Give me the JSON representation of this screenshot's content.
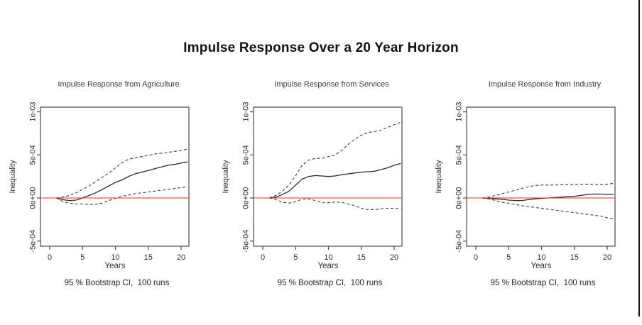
{
  "page": {
    "title": "Impulse Response Over a 20 Year Horizon"
  },
  "colors": {
    "background": "#ffffff",
    "text": "#1a1a1a",
    "axis": "#4a4a4a",
    "irf_line": "#2b2b2b",
    "ci_line": "#3d3d3d",
    "zero_line": "#e03131",
    "window_edge": "#151515"
  },
  "chart_data": [
    {
      "type": "line",
      "title": "Impulse Response from Agriculture",
      "xlabel": "Years",
      "ylabel": "Inequality",
      "caption": "95 % Bootstrap CI,  100 runs",
      "grid": false,
      "legend": "none",
      "xlim": [
        -1.1,
        21.8
      ],
      "ylim": [
        -0.00062,
        0.00108
      ],
      "x_ticks": [
        0,
        5,
        10,
        15,
        20
      ],
      "y_ticks": [
        {
          "label": "-5e-04",
          "value": -0.0005
        },
        {
          "label": "0e+00",
          "value": 0
        },
        {
          "label": "5e-04",
          "value": 0.0005
        },
        {
          "label": "1e-03",
          "value": 0.001
        }
      ],
      "x": [
        1,
        2,
        3,
        4,
        5,
        6,
        7,
        8,
        9,
        10,
        11,
        12,
        13,
        14,
        15,
        16,
        17,
        18,
        19,
        20,
        21
      ],
      "series": [
        {
          "name": "impulse-response",
          "style": "solid",
          "values": [
            0,
            -2e-05,
            -3e-05,
            -2.5e-05,
            0,
            3e-05,
            6e-05,
            0.0001,
            0.00014,
            0.00018,
            0.00021,
            0.00025,
            0.00028,
            0.0003,
            0.00032,
            0.00034,
            0.00036,
            0.00038,
            0.00039,
            0.000405,
            0.00042
          ]
        },
        {
          "name": "upper-ci",
          "style": "dashed",
          "values": [
            0,
            1e-05,
            3e-05,
            6e-05,
            0.0001,
            0.00014,
            0.00019,
            0.00024,
            0.00029,
            0.00035,
            0.00041,
            0.00045,
            0.000465,
            0.00048,
            0.000495,
            0.00051,
            0.00052,
            0.00053,
            0.00054,
            0.00055,
            0.00057
          ]
        },
        {
          "name": "lower-ci",
          "style": "dashed",
          "values": [
            0,
            -4e-05,
            -6e-05,
            -7e-05,
            -7e-05,
            -7.5e-05,
            -7.5e-05,
            -6e-05,
            -3e-05,
            -5e-06,
            2e-05,
            3.5e-05,
            5e-05,
            6e-05,
            7e-05,
            8e-05,
            9e-05,
            0.0001,
            0.00011,
            0.00012,
            0.00013
          ]
        }
      ],
      "reference_line": {
        "y": 0,
        "color": "red"
      }
    },
    {
      "type": "line",
      "title": "Impulse Response from Services",
      "xlabel": "Years",
      "ylabel": "Inequality",
      "caption": "95 % Bootstrap CI,  100 runs",
      "grid": false,
      "legend": "none",
      "xlim": [
        -1.1,
        21.8
      ],
      "ylim": [
        -0.00062,
        0.00108
      ],
      "x_ticks": [
        0,
        5,
        10,
        15,
        20
      ],
      "y_ticks": [
        {
          "label": "-5e-04",
          "value": -0.0005
        },
        {
          "label": "0e+00",
          "value": 0
        },
        {
          "label": "5e-04",
          "value": 0.0005
        },
        {
          "label": "1e-03",
          "value": 0.001
        }
      ],
      "x": [
        1,
        2,
        3,
        4,
        5,
        6,
        7,
        8,
        9,
        10,
        11,
        12,
        13,
        14,
        15,
        16,
        17,
        18,
        19,
        20,
        21
      ],
      "series": [
        {
          "name": "impulse-response",
          "style": "solid",
          "values": [
            0,
            1e-05,
            4e-05,
            8e-05,
            0.00015,
            0.00022,
            0.00025,
            0.00026,
            0.000255,
            0.00025,
            0.000255,
            0.00027,
            0.00028,
            0.00029,
            0.0003,
            0.000305,
            0.00031,
            0.00033,
            0.00035,
            0.00038,
            0.0004
          ]
        },
        {
          "name": "upper-ci",
          "style": "dashed",
          "values": [
            0,
            3e-05,
            8e-05,
            0.00015,
            0.00026,
            0.00038,
            0.00044,
            0.00046,
            0.00046,
            0.00048,
            0.0005,
            0.00055,
            0.00062,
            0.00068,
            0.00073,
            0.00076,
            0.00077,
            0.00079,
            0.00082,
            0.00085,
            0.00088
          ]
        },
        {
          "name": "lower-ci",
          "style": "dashed",
          "values": [
            0,
            -2e-05,
            -5e-05,
            -6e-05,
            -4e-05,
            -1.5e-05,
            -1e-05,
            -3e-05,
            -5e-05,
            -5.5e-05,
            -4.5e-05,
            -5e-05,
            -7e-05,
            -9e-05,
            -0.00012,
            -0.000135,
            -0.000135,
            -0.000125,
            -0.00012,
            -0.00012,
            -0.000125
          ]
        }
      ],
      "reference_line": {
        "y": 0,
        "color": "red"
      }
    },
    {
      "type": "line",
      "title": "Impulse Response from Industry",
      "xlabel": "Years",
      "ylabel": "Inequality",
      "caption": "95 % Bootstrap CI,  100 runs",
      "grid": false,
      "legend": "none",
      "xlim": [
        -1.1,
        21.8
      ],
      "ylim": [
        -0.00062,
        0.00108
      ],
      "x_ticks": [
        0,
        5,
        10,
        15,
        20
      ],
      "y_ticks": [
        {
          "label": "-5e-04",
          "value": -0.0005
        },
        {
          "label": "0e+00",
          "value": 0
        },
        {
          "label": "5e-04",
          "value": 0.0005
        },
        {
          "label": "1e-03",
          "value": 0.001
        }
      ],
      "x": [
        1,
        2,
        3,
        4,
        5,
        6,
        7,
        8,
        9,
        10,
        11,
        12,
        13,
        14,
        15,
        16,
        17,
        18,
        19,
        20,
        21
      ],
      "series": [
        {
          "name": "impulse-response",
          "style": "solid",
          "values": [
            0,
            -5e-06,
            -1e-05,
            -1.5e-05,
            -2.5e-05,
            -3e-05,
            -3e-05,
            -2e-05,
            -1e-05,
            -5e-06,
            0,
            5e-06,
            1e-05,
            1.5e-05,
            2e-05,
            3e-05,
            4e-05,
            4.5e-05,
            4.5e-05,
            4e-05,
            4e-05
          ]
        },
        {
          "name": "upper-ci",
          "style": "dashed",
          "values": [
            0,
            1e-05,
            3e-05,
            5e-05,
            7e-05,
            9e-05,
            0.00011,
            0.00013,
            0.000145,
            0.00015,
            0.00015,
            0.00015,
            0.000155,
            0.000155,
            0.00016,
            0.00016,
            0.00016,
            0.00016,
            0.000155,
            0.00016,
            0.00017
          ]
        },
        {
          "name": "lower-ci",
          "style": "dashed",
          "values": [
            0,
            -1e-05,
            -3e-05,
            -5e-05,
            -6e-05,
            -7.5e-05,
            -9e-05,
            -0.0001,
            -0.00011,
            -0.00012,
            -0.00013,
            -0.00014,
            -0.00015,
            -0.00016,
            -0.00017,
            -0.00018,
            -0.00019,
            -0.0002,
            -0.00021,
            -0.00023,
            -0.00024
          ]
        }
      ],
      "reference_line": {
        "y": 0,
        "color": "red"
      }
    }
  ]
}
